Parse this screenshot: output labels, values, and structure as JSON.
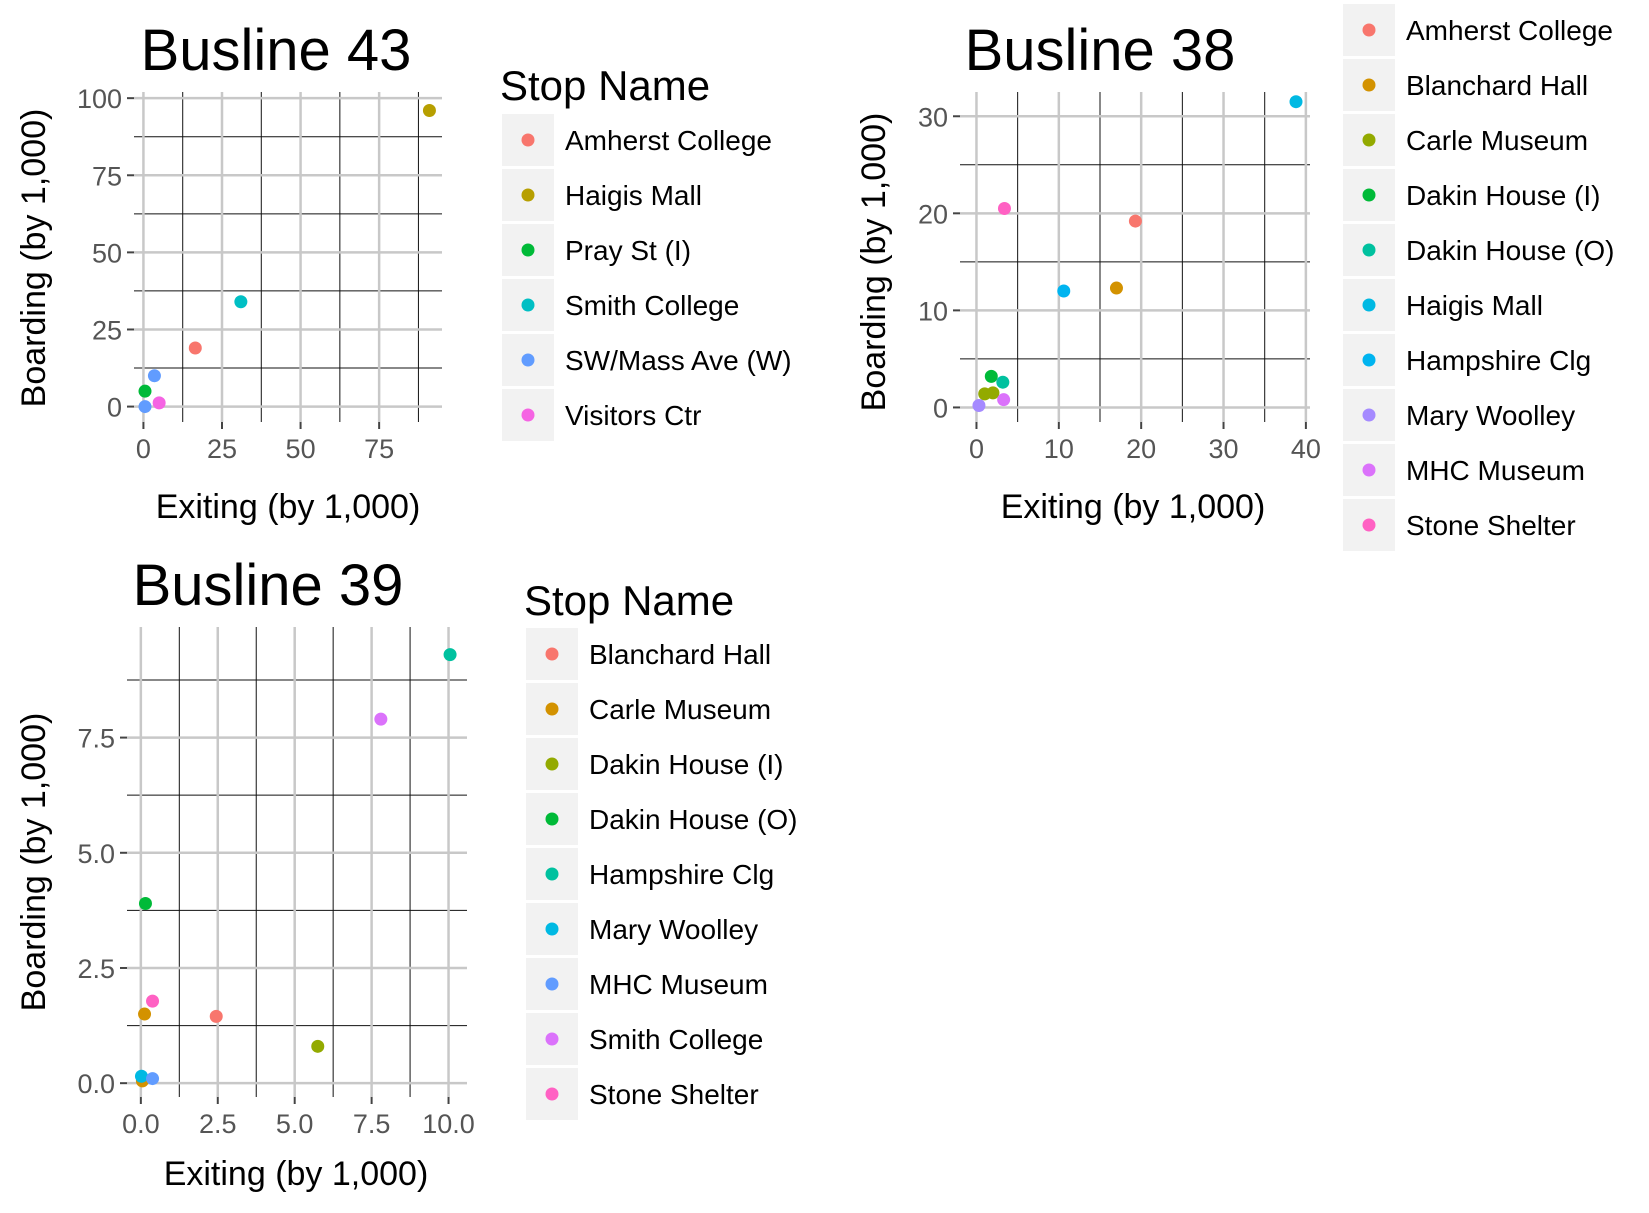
{
  "chart_data": [
    {
      "type": "scatter",
      "title": "Busline 43",
      "xlabel": "Exiting (by 1,000)",
      "ylabel": "Boarding (by 1,000)",
      "xlim": [
        -3,
        95
      ],
      "ylim": [
        -5,
        102
      ],
      "xticks": [
        0,
        25,
        50,
        75
      ],
      "yticks": [
        0,
        25,
        50,
        75,
        100
      ],
      "xtick_labels": [
        "0",
        "25",
        "50",
        "75"
      ],
      "ytick_labels": [
        "0",
        "25",
        "50",
        "75",
        "100"
      ],
      "grid": true,
      "legend_title": "Stop Name",
      "legend_placement": "right",
      "series": [
        {
          "name": "Amherst College",
          "color": "#F8766D",
          "x": [
            16.5
          ],
          "y": [
            19
          ]
        },
        {
          "name": "Haigis Mall",
          "color": "#B79F00",
          "x": [
            91
          ],
          "y": [
            96
          ]
        },
        {
          "name": "Pray St (I)",
          "color": "#00BA38",
          "x": [
            0.5
          ],
          "y": [
            5
          ]
        },
        {
          "name": "Smith College",
          "color": "#00BFC4",
          "x": [
            31
          ],
          "y": [
            34
          ]
        },
        {
          "name": "SW/Mass Ave (W)",
          "color": "#619CFF",
          "x": [
            0.5,
            3.5
          ],
          "y": [
            0,
            10
          ]
        },
        {
          "name": "Visitors Ctr",
          "color": "#F564E3",
          "x": [
            5
          ],
          "y": [
            1.2
          ]
        }
      ]
    },
    {
      "type": "scatter",
      "title": "Busline 38",
      "xlabel": "Exiting (by 1,000)",
      "ylabel": "Boarding (by 1,000)",
      "xlim": [
        -2,
        40.5
      ],
      "ylim": [
        -1.5,
        32.5
      ],
      "xticks": [
        0,
        10,
        20,
        30,
        40
      ],
      "yticks": [
        0,
        10,
        20,
        30
      ],
      "xtick_labels": [
        "0",
        "10",
        "20",
        "30",
        "40"
      ],
      "ytick_labels": [
        "0",
        "10",
        "20",
        "30"
      ],
      "grid": true,
      "legend_title": "",
      "legend_placement": "right",
      "series": [
        {
          "name": "Amherst College",
          "color": "#F8766D",
          "x": [
            19.3
          ],
          "y": [
            19.2
          ]
        },
        {
          "name": "Blanchard Hall",
          "color": "#D39200",
          "x": [
            17
          ],
          "y": [
            12.3
          ]
        },
        {
          "name": "Carle Museum",
          "color": "#93AA00",
          "x": [
            1,
            2
          ],
          "y": [
            1.4,
            1.5
          ]
        },
        {
          "name": "Dakin House (I)",
          "color": "#00BA38",
          "x": [
            1.8
          ],
          "y": [
            3.2
          ]
        },
        {
          "name": "Dakin House (O)",
          "color": "#00C19F",
          "x": [
            3.2
          ],
          "y": [
            2.6
          ]
        },
        {
          "name": "Haigis Mall",
          "color": "#00B9E3",
          "x": [
            38.8
          ],
          "y": [
            31.5
          ]
        },
        {
          "name": "Hampshire Clg",
          "color": "#00B4F0",
          "x": [
            10.6
          ],
          "y": [
            12
          ]
        },
        {
          "name": "Mary Woolley",
          "color": "#A58AFF",
          "x": [
            0.3
          ],
          "y": [
            0.2
          ]
        },
        {
          "name": "MHC Museum",
          "color": "#DB72FB",
          "x": [
            3.3
          ],
          "y": [
            0.8
          ]
        },
        {
          "name": "Stone Shelter",
          "color": "#FF61C3",
          "x": [
            3.4
          ],
          "y": [
            20.5
          ]
        }
      ]
    },
    {
      "type": "scatter",
      "title": "Busline 39",
      "xlabel": "Exiting (by 1,000)",
      "ylabel": "Boarding (by 1,000)",
      "xlim": [
        -0.45,
        10.6
      ],
      "ylim": [
        -0.3,
        9.9
      ],
      "xticks": [
        0.0,
        2.5,
        5.0,
        7.5,
        10.0
      ],
      "yticks": [
        0.0,
        2.5,
        5.0,
        7.5
      ],
      "xtick_labels": [
        "0.0",
        "2.5",
        "5.0",
        "7.5",
        "10.0"
      ],
      "ytick_labels": [
        "0.0",
        "2.5",
        "5.0",
        "7.5"
      ],
      "grid": true,
      "legend_title": "Stop Name",
      "legend_placement": "right",
      "series": [
        {
          "name": "Blanchard Hall",
          "color": "#F8766D",
          "x": [
            2.45
          ],
          "y": [
            1.45
          ]
        },
        {
          "name": "Carle Museum",
          "color": "#D39200",
          "x": [
            0.05,
            0.12
          ],
          "y": [
            0.05,
            1.5
          ]
        },
        {
          "name": "Dakin House (I)",
          "color": "#93AA00",
          "x": [
            5.75
          ],
          "y": [
            0.8
          ]
        },
        {
          "name": "Dakin House (O)",
          "color": "#00BA38",
          "x": [
            0.15
          ],
          "y": [
            3.9
          ]
        },
        {
          "name": "Hampshire Clg",
          "color": "#00C19F",
          "x": [
            10.05
          ],
          "y": [
            9.3
          ]
        },
        {
          "name": "Mary Woolley",
          "color": "#00B9E3",
          "x": [
            0.02
          ],
          "y": [
            0.15
          ]
        },
        {
          "name": "MHC Museum",
          "color": "#619CFF",
          "x": [
            0.38
          ],
          "y": [
            0.1
          ]
        },
        {
          "name": "Smith College",
          "color": "#DB72FB",
          "x": [
            7.8
          ],
          "y": [
            7.9
          ]
        },
        {
          "name": "Stone Shelter",
          "color": "#FF61C3",
          "x": [
            0.38
          ],
          "y": [
            1.78
          ]
        }
      ]
    }
  ]
}
